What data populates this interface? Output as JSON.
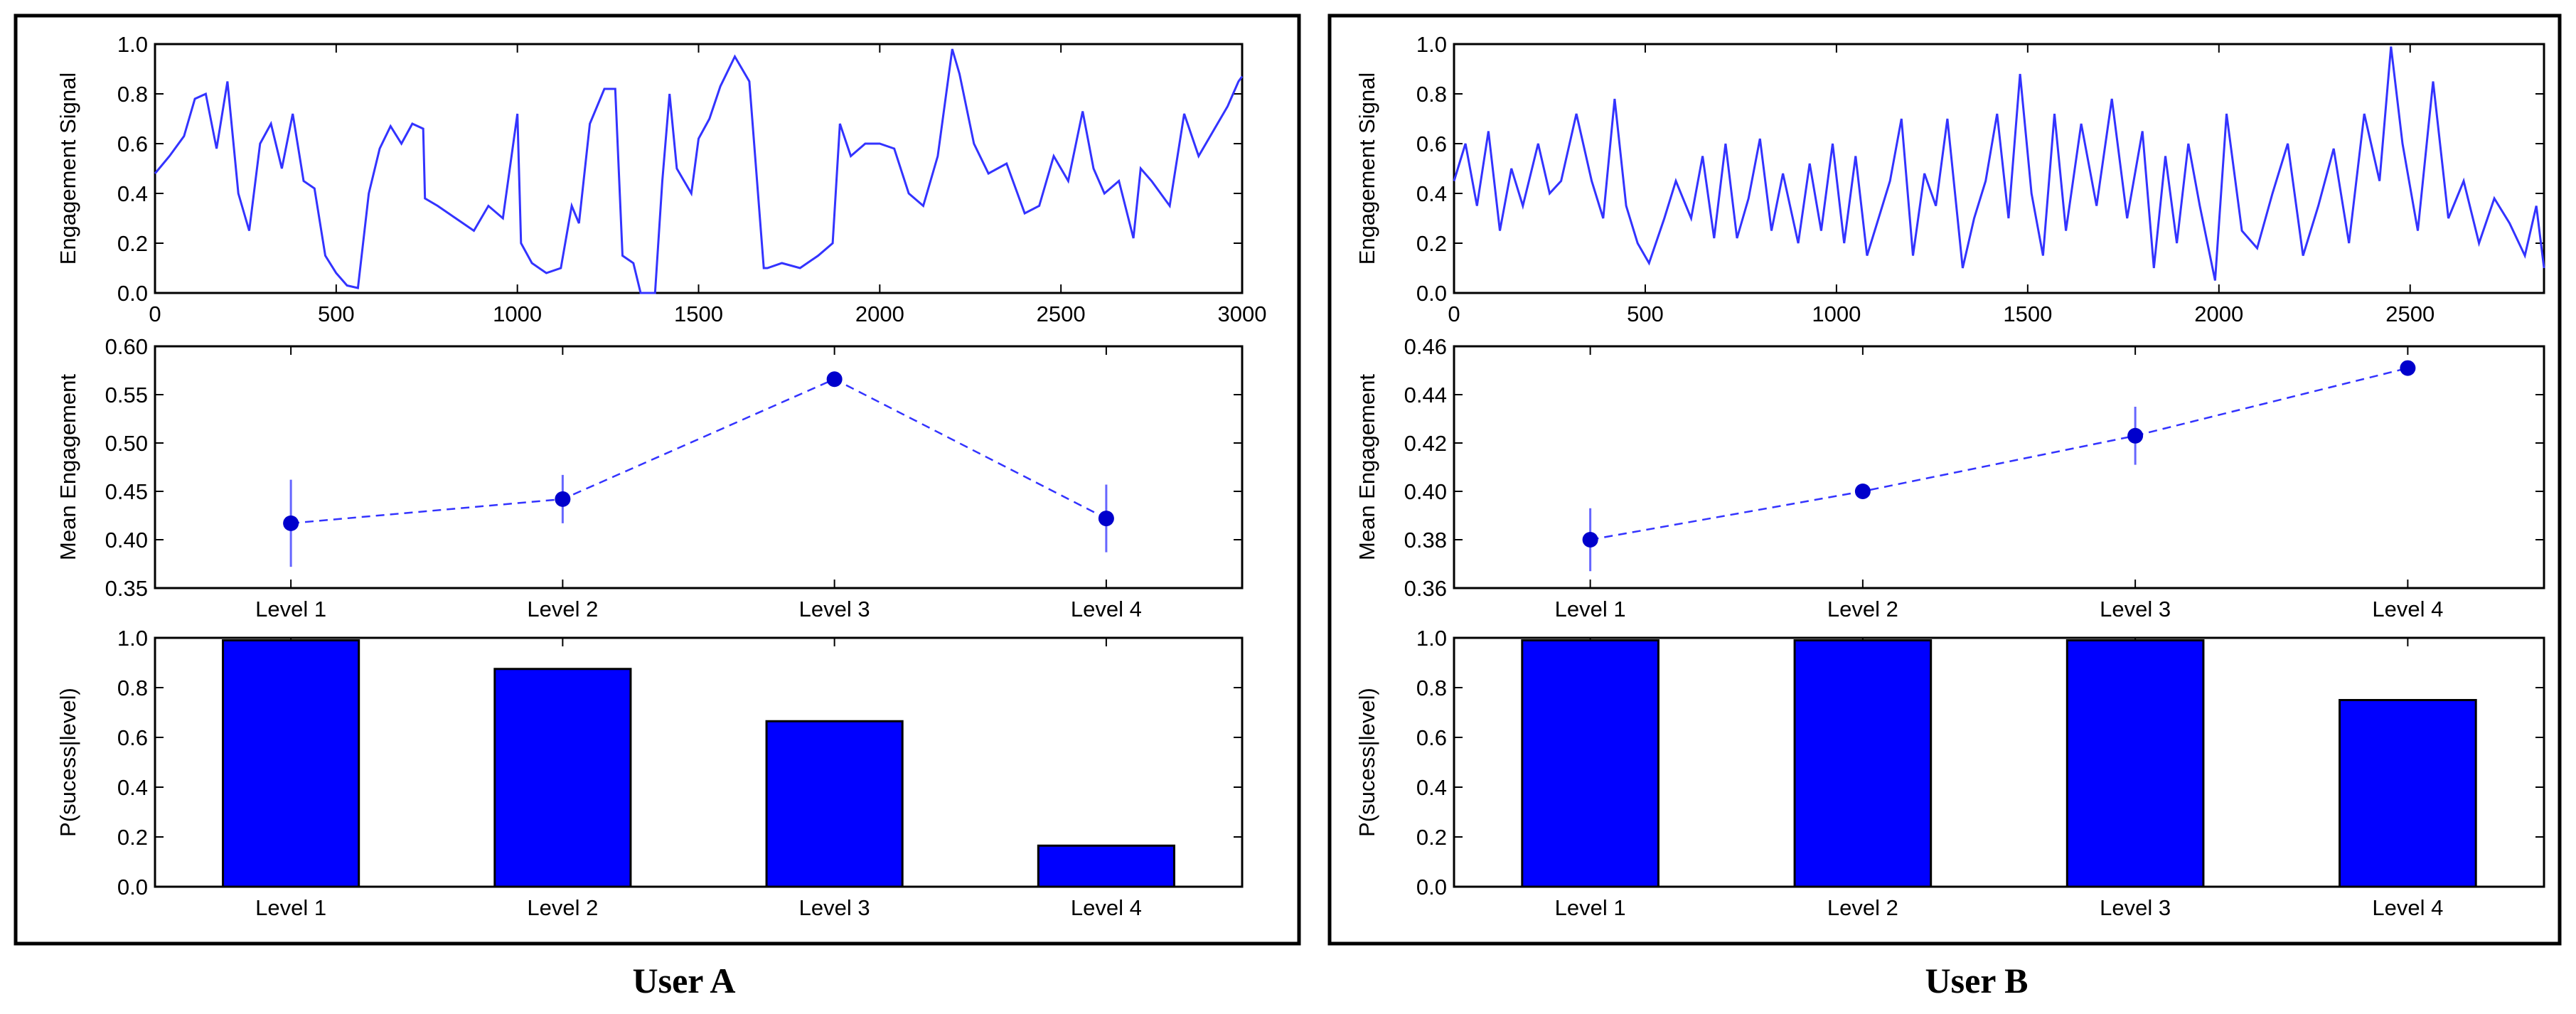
{
  "figure": {
    "panels": [
      {
        "caption": "User A"
      },
      {
        "caption": "User B"
      }
    ]
  },
  "chart_data": [
    {
      "panel": "User A",
      "type": "line",
      "title": "",
      "xlabel": "",
      "ylabel": "Engagement Signal",
      "xlim": [
        0,
        3000
      ],
      "ylim": [
        0.0,
        1.0
      ],
      "xticks": [
        "0",
        "500",
        "1000",
        "1500",
        "2000",
        "2500",
        "3000"
      ],
      "yticks": [
        "0.0",
        "0.2",
        "0.4",
        "0.6",
        "0.8",
        "1.0"
      ],
      "color": "#3333ff",
      "x": [
        0,
        40,
        80,
        110,
        140,
        170,
        200,
        230,
        260,
        290,
        320,
        350,
        380,
        410,
        440,
        470,
        500,
        530,
        560,
        590,
        620,
        650,
        680,
        710,
        740,
        745,
        780,
        830,
        880,
        920,
        960,
        1000,
        1010,
        1040,
        1080,
        1120,
        1150,
        1170,
        1200,
        1240,
        1270,
        1290,
        1320,
        1340,
        1360,
        1380,
        1400,
        1420,
        1440,
        1480,
        1500,
        1530,
        1560,
        1600,
        1640,
        1680,
        1690,
        1730,
        1780,
        1830,
        1870,
        1890,
        1920,
        1960,
        2000,
        2040,
        2080,
        2120,
        2160,
        2200,
        2220,
        2260,
        2300,
        2350,
        2400,
        2440,
        2480,
        2520,
        2560,
        2590,
        2620,
        2660,
        2700,
        2720,
        2750,
        2800,
        2840,
        2880,
        2920,
        2960,
        2990,
        3000
      ],
      "y": [
        0.48,
        0.55,
        0.63,
        0.78,
        0.8,
        0.58,
        0.85,
        0.4,
        0.25,
        0.6,
        0.68,
        0.5,
        0.72,
        0.45,
        0.42,
        0.15,
        0.08,
        0.03,
        0.02,
        0.4,
        0.58,
        0.67,
        0.6,
        0.68,
        0.66,
        0.38,
        0.35,
        0.3,
        0.25,
        0.35,
        0.3,
        0.72,
        0.2,
        0.12,
        0.08,
        0.1,
        0.35,
        0.28,
        0.68,
        0.82,
        0.82,
        0.15,
        0.12,
        0.0,
        0.0,
        0.0,
        0.45,
        0.8,
        0.5,
        0.4,
        0.62,
        0.7,
        0.83,
        0.95,
        0.85,
        0.1,
        0.1,
        0.12,
        0.1,
        0.15,
        0.2,
        0.68,
        0.55,
        0.6,
        0.6,
        0.58,
        0.4,
        0.35,
        0.55,
        0.98,
        0.88,
        0.6,
        0.48,
        0.52,
        0.32,
        0.35,
        0.55,
        0.45,
        0.73,
        0.5,
        0.4,
        0.45,
        0.22,
        0.5,
        0.45,
        0.35,
        0.72,
        0.55,
        0.65,
        0.75,
        0.85,
        0.87
      ]
    },
    {
      "panel": "User A",
      "type": "line",
      "style": "dashed line with error bars",
      "title": "",
      "xlabel": "",
      "ylabel": "Mean Engagement",
      "ylim": [
        0.35,
        0.6
      ],
      "yticks": [
        "0.35",
        "0.40",
        "0.45",
        "0.50",
        "0.55",
        "0.60"
      ],
      "categories": [
        "Level 1",
        "Level 2",
        "Level 3",
        "Level 4"
      ],
      "values": [
        0.417,
        0.442,
        0.566,
        0.422
      ],
      "errors": [
        0.045,
        0.025,
        0.007,
        0.035
      ],
      "color": "#0000cc"
    },
    {
      "panel": "User A",
      "type": "bar",
      "title": "",
      "xlabel": "",
      "ylabel": "P(sucess|level)",
      "ylim": [
        0.0,
        1.0
      ],
      "yticks": [
        "0.0",
        "0.2",
        "0.4",
        "0.6",
        "0.8",
        "1.0"
      ],
      "categories": [
        "Level 1",
        "Level 2",
        "Level 3",
        "Level 4"
      ],
      "values": [
        0.99,
        0.875,
        0.665,
        0.165
      ],
      "color": "#0000ff"
    },
    {
      "panel": "User B",
      "type": "line",
      "title": "",
      "xlabel": "",
      "ylabel": "Engagement Signal",
      "xlim": [
        0,
        2850
      ],
      "ylim": [
        0.0,
        1.0
      ],
      "xticks": [
        "0",
        "500",
        "1000",
        "1500",
        "2000",
        "2500"
      ],
      "yticks": [
        "0.0",
        "0.2",
        "0.4",
        "0.6",
        "0.8",
        "1.0"
      ],
      "color": "#3333ff",
      "x": [
        0,
        30,
        60,
        90,
        120,
        150,
        180,
        220,
        250,
        280,
        320,
        360,
        390,
        420,
        450,
        480,
        510,
        550,
        580,
        620,
        650,
        680,
        710,
        740,
        770,
        800,
        830,
        860,
        900,
        930,
        960,
        990,
        1020,
        1050,
        1080,
        1110,
        1140,
        1170,
        1200,
        1230,
        1260,
        1290,
        1330,
        1360,
        1390,
        1420,
        1450,
        1480,
        1510,
        1540,
        1570,
        1600,
        1640,
        1680,
        1720,
        1760,
        1800,
        1830,
        1860,
        1890,
        1920,
        1950,
        1990,
        2020,
        2060,
        2100,
        2140,
        2180,
        2220,
        2260,
        2300,
        2340,
        2380,
        2420,
        2450,
        2480,
        2520,
        2560,
        2600,
        2640,
        2680,
        2720,
        2760,
        2800,
        2830,
        2850
      ],
      "y": [
        0.45,
        0.6,
        0.35,
        0.65,
        0.25,
        0.5,
        0.35,
        0.6,
        0.4,
        0.45,
        0.72,
        0.45,
        0.3,
        0.78,
        0.35,
        0.2,
        0.12,
        0.3,
        0.45,
        0.3,
        0.55,
        0.22,
        0.6,
        0.22,
        0.38,
        0.62,
        0.25,
        0.48,
        0.2,
        0.52,
        0.25,
        0.6,
        0.2,
        0.55,
        0.15,
        0.3,
        0.45,
        0.7,
        0.15,
        0.48,
        0.35,
        0.7,
        0.1,
        0.3,
        0.45,
        0.72,
        0.3,
        0.88,
        0.4,
        0.15,
        0.72,
        0.25,
        0.68,
        0.35,
        0.78,
        0.3,
        0.65,
        0.1,
        0.55,
        0.2,
        0.6,
        0.35,
        0.05,
        0.72,
        0.25,
        0.18,
        0.4,
        0.6,
        0.15,
        0.35,
        0.58,
        0.2,
        0.72,
        0.45,
        0.99,
        0.6,
        0.25,
        0.85,
        0.3,
        0.45,
        0.2,
        0.38,
        0.28,
        0.15,
        0.35,
        0.1
      ]
    },
    {
      "panel": "User B",
      "type": "line",
      "style": "dashed line with error bars",
      "title": "",
      "xlabel": "",
      "ylabel": "Mean Engagement",
      "ylim": [
        0.36,
        0.46
      ],
      "yticks": [
        "0.36",
        "0.38",
        "0.40",
        "0.42",
        "0.44",
        "0.46"
      ],
      "categories": [
        "Level 1",
        "Level 2",
        "Level 3",
        "Level 4"
      ],
      "values": [
        0.38,
        0.4,
        0.423,
        0.451
      ],
      "errors": [
        0.013,
        0.002,
        0.012,
        0.001
      ],
      "color": "#0000cc"
    },
    {
      "panel": "User B",
      "type": "bar",
      "title": "",
      "xlabel": "",
      "ylabel": "P(sucess|level)",
      "ylim": [
        0.0,
        1.0
      ],
      "yticks": [
        "0.0",
        "0.2",
        "0.4",
        "0.6",
        "0.8",
        "1.0"
      ],
      "categories": [
        "Level 1",
        "Level 2",
        "Level 3",
        "Level 4"
      ],
      "values": [
        0.99,
        0.99,
        0.99,
        0.75
      ],
      "color": "#0000ff"
    }
  ]
}
